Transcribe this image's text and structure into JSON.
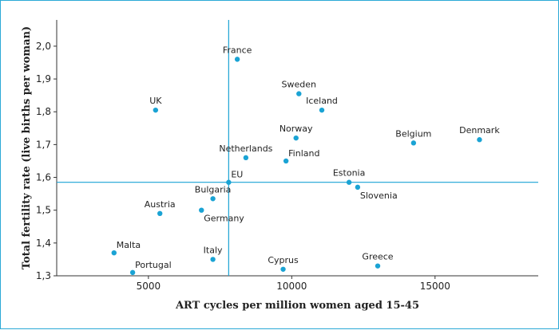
{
  "chart_data": {
    "type": "scatter",
    "title": "",
    "xlabel": "ART cycles per million women aged 15-45",
    "ylabel": "Total fertility rate (live births per woman)",
    "xlim": [
      1800,
      18600
    ],
    "ylim": [
      1.3,
      2.08
    ],
    "x_ticks": [
      5000,
      10000,
      15000
    ],
    "x_tick_labels": [
      "5000",
      "10000",
      "15000"
    ],
    "y_ticks": [
      1.3,
      1.4,
      1.5,
      1.6,
      1.7,
      1.8,
      1.9,
      2.0
    ],
    "y_tick_labels": [
      "1,3",
      "1,4",
      "1,5",
      "1,6",
      "1,7",
      "1,8",
      "1,9",
      "2,0"
    ],
    "reference_lines": {
      "x": 7800,
      "y": 1.585
    },
    "color": "#1aa3d4",
    "grid": false,
    "points": [
      {
        "label": "France",
        "x": 8100,
        "y": 1.96,
        "anchor": "n"
      },
      {
        "label": "Sweden",
        "x": 10250,
        "y": 1.855,
        "anchor": "n"
      },
      {
        "label": "Iceland",
        "x": 11050,
        "y": 1.805,
        "anchor": "n"
      },
      {
        "label": "UK",
        "x": 5250,
        "y": 1.805,
        "anchor": "n"
      },
      {
        "label": "Norway",
        "x": 10150,
        "y": 1.72,
        "anchor": "n"
      },
      {
        "label": "Belgium",
        "x": 14250,
        "y": 1.705,
        "anchor": "n"
      },
      {
        "label": "Denmark",
        "x": 16550,
        "y": 1.715,
        "anchor": "n"
      },
      {
        "label": "Netherlands",
        "x": 8400,
        "y": 1.66,
        "anchor": "n"
      },
      {
        "label": "Finland",
        "x": 9800,
        "y": 1.65,
        "anchor": "ne"
      },
      {
        "label": "EU",
        "x": 7800,
        "y": 1.585,
        "anchor": "ne"
      },
      {
        "label": "Estonia",
        "x": 12000,
        "y": 1.585,
        "anchor": "n"
      },
      {
        "label": "Slovenia",
        "x": 12300,
        "y": 1.57,
        "anchor": "se"
      },
      {
        "label": "Bulgaria",
        "x": 7250,
        "y": 1.535,
        "anchor": "n"
      },
      {
        "label": "Austria",
        "x": 5400,
        "y": 1.49,
        "anchor": "n"
      },
      {
        "label": "Germany",
        "x": 6850,
        "y": 1.5,
        "anchor": "se"
      },
      {
        "label": "Malta",
        "x": 3800,
        "y": 1.37,
        "anchor": "ne"
      },
      {
        "label": "Italy",
        "x": 7250,
        "y": 1.35,
        "anchor": "n"
      },
      {
        "label": "Portugal",
        "x": 4450,
        "y": 1.31,
        "anchor": "ne"
      },
      {
        "label": "Cyprus",
        "x": 9700,
        "y": 1.32,
        "anchor": "n"
      },
      {
        "label": "Greece",
        "x": 13000,
        "y": 1.33,
        "anchor": "n"
      }
    ]
  }
}
